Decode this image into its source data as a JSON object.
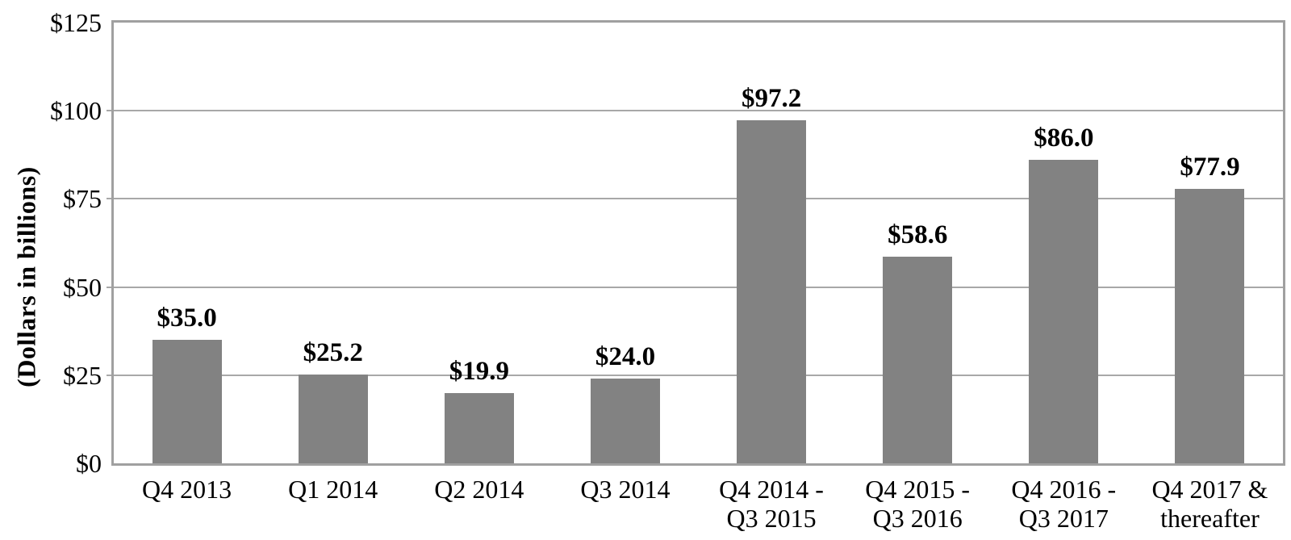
{
  "chart_data": {
    "type": "bar",
    "ylabel": "(Dollars in billions)",
    "categories": [
      "Q4 2013",
      "Q1 2014",
      "Q2 2014",
      "Q3 2014",
      "Q4 2014 - Q3 2015",
      "Q4 2015 - Q3 2016",
      "Q4 2016 - Q3 2017",
      "Q4 2017 & thereafter"
    ],
    "category_lines": [
      [
        "Q4 2013"
      ],
      [
        "Q1 2014"
      ],
      [
        "Q2 2014"
      ],
      [
        "Q3 2014"
      ],
      [
        "Q4 2014 -",
        "Q3 2015"
      ],
      [
        "Q4 2015 -",
        "Q3 2016"
      ],
      [
        "Q4 2016 -",
        "Q3 2017"
      ],
      [
        "Q4 2017 &",
        "thereafter"
      ]
    ],
    "values": [
      35.0,
      25.2,
      19.9,
      24.0,
      97.2,
      58.6,
      86.0,
      77.9
    ],
    "value_labels": [
      "$35.0",
      "$25.2",
      "$19.9",
      "$24.0",
      "$97.2",
      "$58.6",
      "$86.0",
      "$77.9"
    ],
    "y_ticks": [
      "$0",
      "$25",
      "$50",
      "$75",
      "$100",
      "$125"
    ],
    "y_tick_values": [
      0,
      25,
      50,
      75,
      100,
      125
    ],
    "ylim": [
      0,
      125
    ],
    "grid": true,
    "legend": false,
    "colors": {
      "bar": "#828282",
      "gridline": "#a8a8a8",
      "frame": "#a0a0a0",
      "text": "#000000"
    }
  }
}
